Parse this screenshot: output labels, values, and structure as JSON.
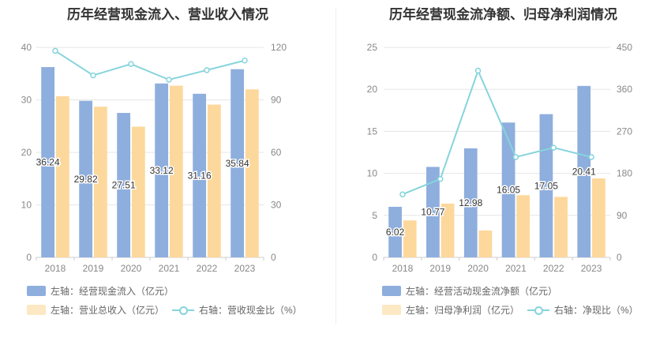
{
  "colors": {
    "bar_primary": "#8eaedd",
    "bar_secondary": "#fdd89c",
    "line": "#86d4dc",
    "grid": "#e6e6e6",
    "axis_text": "#888888",
    "label_text": "#333333"
  },
  "chart_data": [
    {
      "type": "bar",
      "title": "历年经营现金流入、营业收入情况",
      "categories": [
        "2018",
        "2019",
        "2020",
        "2021",
        "2022",
        "2023"
      ],
      "left_axis": {
        "ylim": [
          0,
          40
        ],
        "ticks": [
          "0",
          "10",
          "20",
          "30",
          "40"
        ]
      },
      "right_axis": {
        "ylim": [
          0,
          120
        ],
        "ticks": [
          "0",
          "30",
          "60",
          "90",
          "120"
        ]
      },
      "series": [
        {
          "name": "左轴：经营现金流入（亿元）",
          "axis": "left",
          "kind": "bar",
          "values": [
            36.24,
            29.82,
            27.51,
            33.12,
            31.16,
            35.84
          ],
          "labels": [
            "36.24",
            "29.82",
            "27.51",
            "33.12",
            "31.16",
            "35.84"
          ]
        },
        {
          "name": "左轴：营业总收入（亿元）",
          "axis": "left",
          "kind": "bar",
          "values": [
            30.7,
            28.7,
            24.9,
            32.7,
            29.1,
            32.0
          ]
        },
        {
          "name": "右轴：营收现金比（%）",
          "axis": "right",
          "kind": "line",
          "values": [
            118,
            104,
            110.5,
            101.5,
            107,
            112.5
          ]
        }
      ]
    },
    {
      "type": "bar",
      "title": "历年经营现金流净额、归母净利润情况",
      "categories": [
        "2018",
        "2019",
        "2020",
        "2021",
        "2022",
        "2023"
      ],
      "left_axis": {
        "ylim": [
          0,
          25
        ],
        "ticks": [
          "0",
          "5",
          "10",
          "15",
          "20",
          "25"
        ]
      },
      "right_axis": {
        "ylim": [
          0,
          450
        ],
        "ticks": [
          "0",
          "90",
          "180",
          "270",
          "360",
          "450"
        ]
      },
      "series": [
        {
          "name": "左轴：经营活动现金流净额（亿元）",
          "axis": "left",
          "kind": "bar",
          "values": [
            6.02,
            10.77,
            12.98,
            16.05,
            17.05,
            20.41
          ],
          "labels": [
            "6.02",
            "10.77",
            "12.98",
            "16.05",
            "17.05",
            "20.41"
          ]
        },
        {
          "name": "左轴：归母净利润（亿元）",
          "axis": "left",
          "kind": "bar",
          "values": [
            4.4,
            6.4,
            3.2,
            7.4,
            7.2,
            9.4
          ]
        },
        {
          "name": "右轴：净现比（%）",
          "axis": "right",
          "kind": "line",
          "values": [
            135,
            168,
            400,
            215,
            235,
            215
          ]
        }
      ]
    }
  ]
}
